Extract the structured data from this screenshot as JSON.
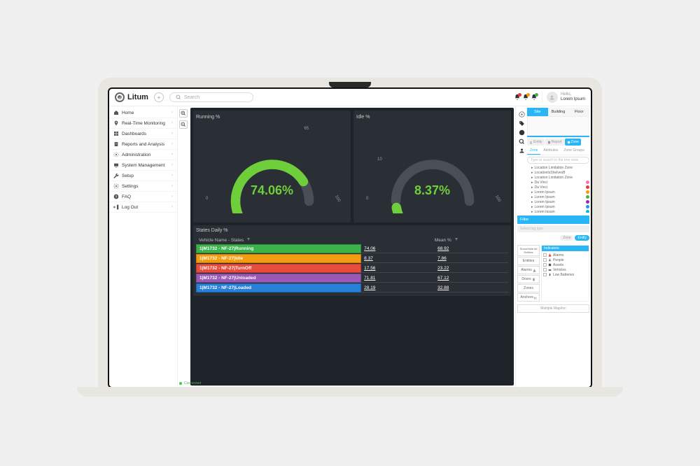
{
  "brand": {
    "name": "Litum"
  },
  "search": {
    "placeholder": "Search"
  },
  "topbar": {
    "notification_badges": [
      "#e53935",
      "#ff9800",
      "#4caf50"
    ],
    "user_greeting": "Hello,",
    "user_name": "Lorem Ipsum"
  },
  "sidebar": {
    "items": [
      {
        "label": "Home",
        "icon": "home"
      },
      {
        "label": "Real-Time Monitoring",
        "icon": "pin"
      },
      {
        "label": "Dashboards",
        "icon": "dashboard"
      },
      {
        "label": "Reports and Analysis",
        "icon": "report"
      },
      {
        "label": "Administration",
        "icon": "admin"
      },
      {
        "label": "System Management",
        "icon": "system"
      },
      {
        "label": "Setup",
        "icon": "wrench"
      },
      {
        "label": "Settings",
        "icon": "gear"
      },
      {
        "label": "FAQ",
        "icon": "faq"
      },
      {
        "label": "Log Out",
        "icon": "logout"
      }
    ]
  },
  "gauges": {
    "running": {
      "title": "Running %",
      "value": "74.06%",
      "value_num": 74.06,
      "color": "#6fcf3a",
      "value_color": "#6fcf3a",
      "track_color": "#4a4f55",
      "tick_low": "0",
      "tick_mid": "65",
      "tick_high": "100"
    },
    "idle": {
      "title": "Idle %",
      "value": "8.37%",
      "value_num": 8.37,
      "color": "#6fcf3a",
      "value_color": "#6fcf3a",
      "track_color": "#4a4f55",
      "tick_low": "0",
      "tick_mid": "10",
      "tick_high": "100"
    }
  },
  "states_table": {
    "title": "States Daily %",
    "col1": "Vehicle Name - States",
    "col2": "",
    "col3": "Mean %",
    "rows": [
      {
        "name": "1|M1732 - NF-27|Running",
        "v1": "74.06",
        "v2": "68.92",
        "bg": "#3bb24a"
      },
      {
        "name": "1|M1732 - NF-27|Idle",
        "v1": "8.37",
        "v2": "7.86",
        "bg": "#f39c12"
      },
      {
        "name": "1|M1732 - NF-27|TurnOff",
        "v1": "17.56",
        "v2": "23.22",
        "bg": "#e74c3c"
      },
      {
        "name": "1|M1732 - NF-27|Unloaded",
        "v1": "71.81",
        "v2": "67.12",
        "bg": "#9b59b6"
      },
      {
        "name": "1|M1732 - NF-27|Loaded",
        "v1": "28.19",
        "v2": "32.88",
        "bg": "#2980d9"
      }
    ]
  },
  "connection": {
    "status": "Connected"
  },
  "rightpanel": {
    "view_tabs": {
      "site": "Site",
      "building": "Building",
      "floor": "Floor",
      "active": "site"
    },
    "filter_tabs": {
      "entity": "Entity",
      "report": "Report",
      "zone": "Zone"
    },
    "sub_tabs": {
      "zone": "Zone",
      "attributes": "Attributes",
      "zonegroups": "Zone Groups"
    },
    "search_placeholder": "Type to search in the tree view",
    "tree": [
      {
        "label": "Location Limitation Zone",
        "dot": null
      },
      {
        "label": "LocationIsShelvesB",
        "dot": null
      },
      {
        "label": "Location Limitation Zone",
        "dot": null
      },
      {
        "label": "Da Vinci",
        "dot": "#ff6fb0"
      },
      {
        "label": "Da Vinci",
        "dot": "#e53935"
      },
      {
        "label": "Lorem Ipsum",
        "dot": "#ff9800"
      },
      {
        "label": "Lorem Ipsum",
        "dot": "#4caf50"
      },
      {
        "label": "Lorem Ipsum",
        "dot": "#9c27b0"
      },
      {
        "label": "Lorem Ipsum",
        "dot": "#2196f3"
      },
      {
        "label": "Lorem Ipsum",
        "dot": "#00bcd4"
      }
    ],
    "filter_label": "Filter",
    "filter_hint": "Select tag type",
    "pill_zone": "Zone",
    "pill_entity": "Entity",
    "show_hide": "Show/Hide All Entities",
    "entities_btn": "Entities",
    "alarms_btn": "Alarms",
    "doors_btn": "Doors",
    "zones_btn": "Zones",
    "anchors_btn": "Anchors",
    "legend_title": "Indicators",
    "legend": [
      {
        "label": "Alarms"
      },
      {
        "label": "People"
      },
      {
        "label": "Assets"
      },
      {
        "label": "Vehicles"
      },
      {
        "label": "Low Batteries"
      }
    ],
    "footer_btn": "Multiple Map/Inc"
  }
}
